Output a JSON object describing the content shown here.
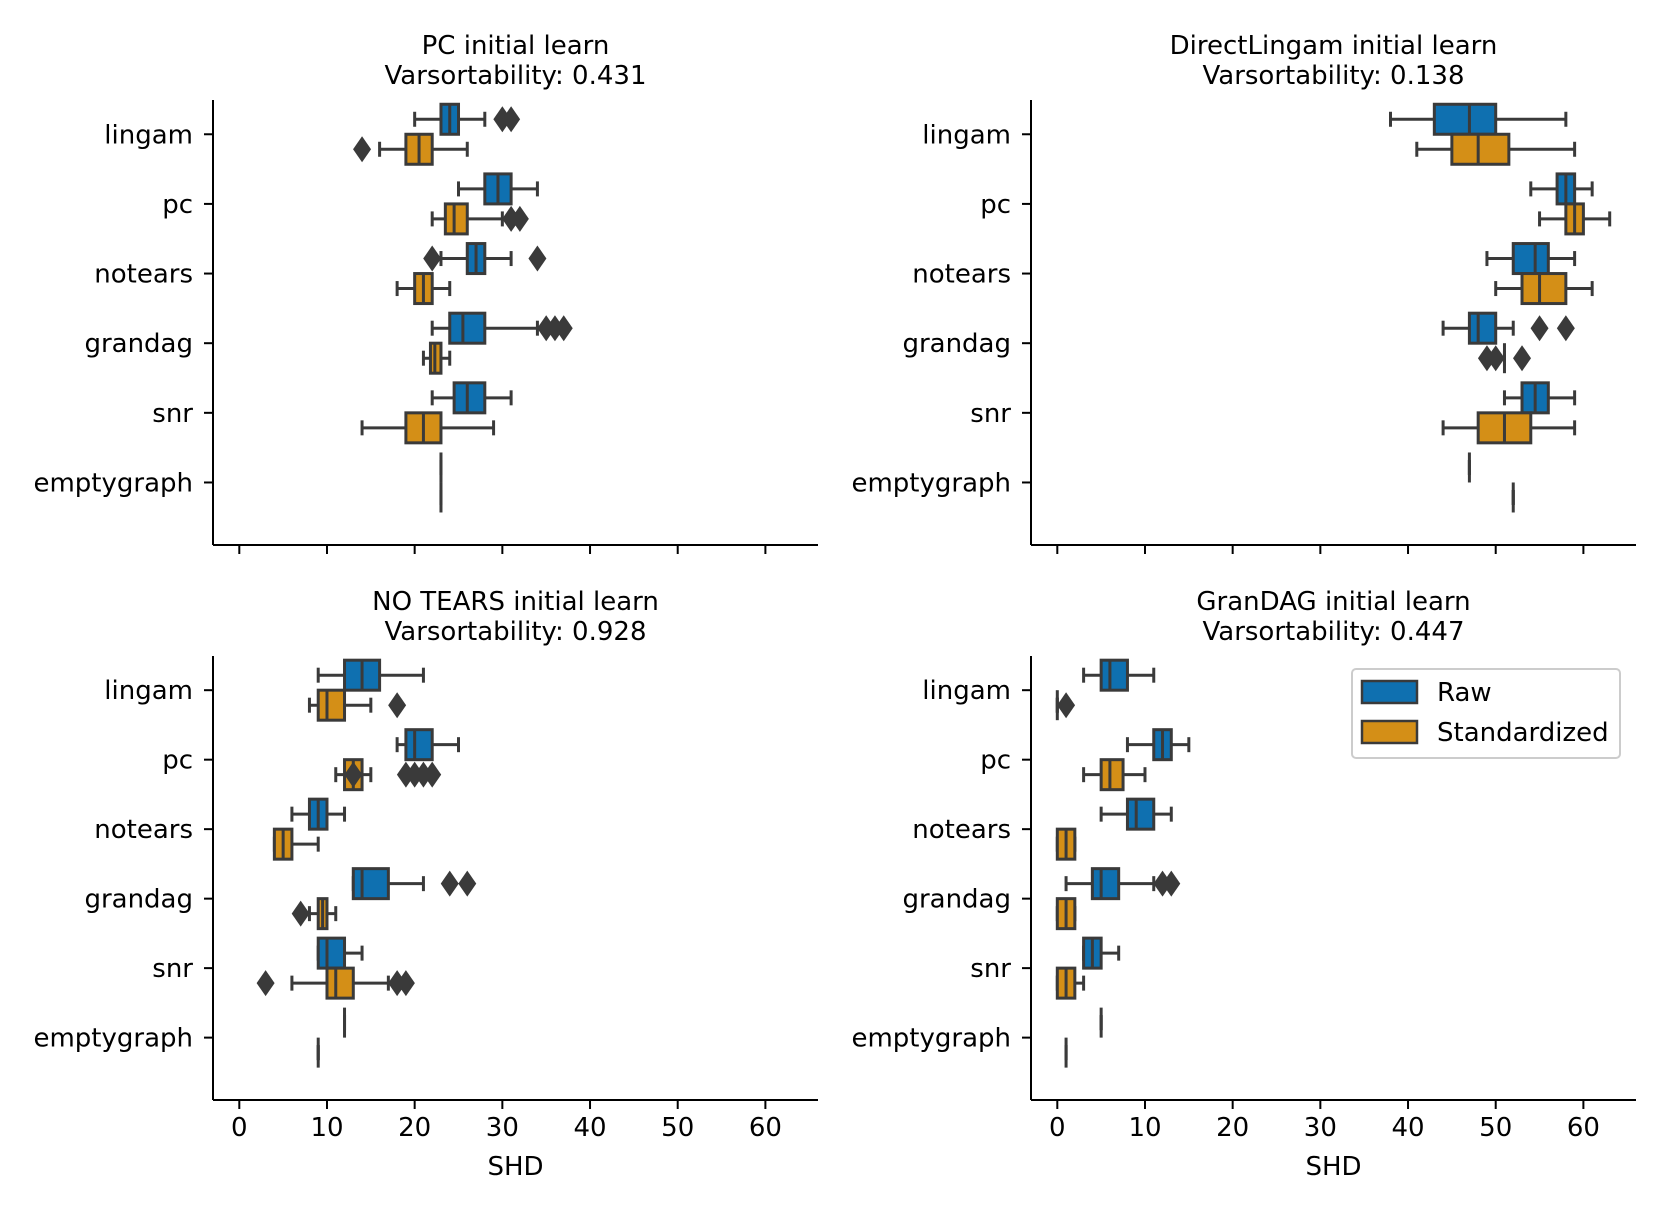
{
  "colors": {
    "raw": "#0f70b0",
    "standardized": "#d48f17",
    "edge": "#3a3a3a"
  },
  "legend": {
    "raw": "Raw",
    "standardized": "Standardized"
  },
  "shared": {
    "xlabel": "SHD",
    "xticks": [
      "0",
      "10",
      "20",
      "30",
      "40",
      "50",
      "60"
    ],
    "categories": [
      "lingam",
      "pc",
      "notears",
      "grandag",
      "snr",
      "emptygraph"
    ]
  },
  "chart_data": [
    {
      "type": "boxplot",
      "title": "PC initial learn",
      "subtitle": "Varsortability: 0.431",
      "xlabel": "SHD",
      "xlim": [
        -3,
        66
      ],
      "categories": [
        "lingam",
        "pc",
        "notears",
        "grandag",
        "snr",
        "emptygraph"
      ],
      "series": [
        {
          "name": "Raw",
          "boxes": [
            {
              "whislo": 20,
              "q1": 23,
              "med": 24,
              "q3": 25,
              "whishi": 28,
              "fliers": [
                30,
                31
              ]
            },
            {
              "whislo": 25,
              "q1": 28,
              "med": 29.5,
              "q3": 31,
              "whishi": 34,
              "fliers": []
            },
            {
              "whislo": 23,
              "q1": 26,
              "med": 27,
              "q3": 28,
              "whishi": 31,
              "fliers": [
                22,
                34
              ]
            },
            {
              "whislo": 22,
              "q1": 24,
              "med": 25.5,
              "q3": 28,
              "whishi": 34,
              "fliers": [
                35,
                36,
                37
              ]
            },
            {
              "whislo": 22,
              "q1": 24.5,
              "med": 26,
              "q3": 28,
              "whishi": 31,
              "fliers": []
            },
            {
              "whislo": 23,
              "q1": 23,
              "med": 23,
              "q3": 23,
              "whishi": 23,
              "fliers": []
            }
          ]
        },
        {
          "name": "Standardized",
          "boxes": [
            {
              "whislo": 16,
              "q1": 19,
              "med": 20.5,
              "q3": 22,
              "whishi": 26,
              "fliers": [
                14
              ]
            },
            {
              "whislo": 22,
              "q1": 23.5,
              "med": 24.5,
              "q3": 26,
              "whishi": 30,
              "fliers": [
                31,
                32
              ]
            },
            {
              "whislo": 18,
              "q1": 20,
              "med": 21,
              "q3": 22,
              "whishi": 24,
              "fliers": []
            },
            {
              "whislo": 21,
              "q1": 21.8,
              "med": 22.3,
              "q3": 23,
              "whishi": 24,
              "fliers": []
            },
            {
              "whislo": 14,
              "q1": 19,
              "med": 21,
              "q3": 23,
              "whishi": 29,
              "fliers": []
            },
            {
              "whislo": 23,
              "q1": 23,
              "med": 23,
              "q3": 23,
              "whishi": 23,
              "fliers": []
            }
          ]
        }
      ]
    },
    {
      "type": "boxplot",
      "title": "DirectLingam initial learn",
      "subtitle": "Varsortability: 0.138",
      "xlabel": "SHD",
      "xlim": [
        -3,
        66
      ],
      "categories": [
        "lingam",
        "pc",
        "notears",
        "grandag",
        "snr",
        "emptygraph"
      ],
      "series": [
        {
          "name": "Raw",
          "boxes": [
            {
              "whislo": 38,
              "q1": 43,
              "med": 47,
              "q3": 50,
              "whishi": 58,
              "fliers": []
            },
            {
              "whislo": 54,
              "q1": 57,
              "med": 58,
              "q3": 59,
              "whishi": 61,
              "fliers": []
            },
            {
              "whislo": 49,
              "q1": 52,
              "med": 54.5,
              "q3": 56,
              "whishi": 59,
              "fliers": []
            },
            {
              "whislo": 44,
              "q1": 47,
              "med": 48,
              "q3": 50,
              "whishi": 52,
              "fliers": [
                55,
                58
              ]
            },
            {
              "whislo": 51,
              "q1": 53,
              "med": 54.5,
              "q3": 56,
              "whishi": 59,
              "fliers": []
            },
            {
              "whislo": 47,
              "q1": 47,
              "med": 47,
              "q3": 47,
              "whishi": 47,
              "fliers": []
            }
          ]
        },
        {
          "name": "Standardized",
          "boxes": [
            {
              "whislo": 41,
              "q1": 45,
              "med": 48,
              "q3": 51.5,
              "whishi": 59,
              "fliers": []
            },
            {
              "whislo": 55,
              "q1": 58,
              "med": 59,
              "q3": 60,
              "whishi": 63,
              "fliers": []
            },
            {
              "whislo": 50,
              "q1": 53,
              "med": 55,
              "q3": 58,
              "whishi": 61,
              "fliers": []
            },
            {
              "whislo": 51,
              "q1": 51,
              "med": 51,
              "q3": 51,
              "whishi": 51,
              "fliers": [
                49,
                50,
                53
              ]
            },
            {
              "whislo": 44,
              "q1": 48,
              "med": 51,
              "q3": 54,
              "whishi": 59,
              "fliers": []
            },
            {
              "whislo": 52,
              "q1": 52,
              "med": 52,
              "q3": 52,
              "whishi": 52,
              "fliers": []
            }
          ]
        }
      ]
    },
    {
      "type": "boxplot",
      "title": "NO TEARS initial learn",
      "subtitle": "Varsortability: 0.928",
      "xlabel": "SHD",
      "xlim": [
        -3,
        66
      ],
      "categories": [
        "lingam",
        "pc",
        "notears",
        "grandag",
        "snr",
        "emptygraph"
      ],
      "series": [
        {
          "name": "Raw",
          "boxes": [
            {
              "whislo": 9,
              "q1": 12,
              "med": 14,
              "q3": 16,
              "whishi": 21,
              "fliers": []
            },
            {
              "whislo": 18,
              "q1": 19,
              "med": 20,
              "q3": 22,
              "whishi": 25,
              "fliers": []
            },
            {
              "whislo": 6,
              "q1": 8,
              "med": 9,
              "q3": 10,
              "whishi": 12,
              "fliers": []
            },
            {
              "whislo": 13,
              "q1": 13,
              "med": 14,
              "q3": 17,
              "whishi": 21,
              "fliers": [
                24,
                26
              ]
            },
            {
              "whislo": 9,
              "q1": 9,
              "med": 10,
              "q3": 12,
              "whishi": 14,
              "fliers": []
            },
            {
              "whislo": 12,
              "q1": 12,
              "med": 12,
              "q3": 12,
              "whishi": 12,
              "fliers": []
            }
          ]
        },
        {
          "name": "Standardized",
          "boxes": [
            {
              "whislo": 8,
              "q1": 9,
              "med": 10,
              "q3": 12,
              "whishi": 15,
              "fliers": [
                18
              ]
            },
            {
              "whislo": 11,
              "q1": 12,
              "med": 13,
              "q3": 14,
              "whishi": 15,
              "fliers": [
                13,
                19,
                20,
                21,
                22
              ]
            },
            {
              "whislo": 4,
              "q1": 4,
              "med": 5,
              "q3": 6,
              "whishi": 9,
              "fliers": []
            },
            {
              "whislo": 8,
              "q1": 9,
              "med": 9.5,
              "q3": 10,
              "whishi": 11,
              "fliers": [
                7
              ]
            },
            {
              "whislo": 6,
              "q1": 10,
              "med": 11,
              "q3": 13,
              "whishi": 17,
              "fliers": [
                3,
                18,
                19
              ]
            },
            {
              "whislo": 9,
              "q1": 9,
              "med": 9,
              "q3": 9,
              "whishi": 9,
              "fliers": []
            }
          ]
        }
      ]
    },
    {
      "type": "boxplot",
      "title": "GranDAG initial learn",
      "subtitle": "Varsortability: 0.447",
      "xlabel": "SHD",
      "xlim": [
        -3,
        66
      ],
      "legend": "top-right",
      "categories": [
        "lingam",
        "pc",
        "notears",
        "grandag",
        "snr",
        "emptygraph"
      ],
      "series": [
        {
          "name": "Raw",
          "boxes": [
            {
              "whislo": 3,
              "q1": 5,
              "med": 6,
              "q3": 8,
              "whishi": 11,
              "fliers": []
            },
            {
              "whislo": 8,
              "q1": 11,
              "med": 12,
              "q3": 13,
              "whishi": 15,
              "fliers": []
            },
            {
              "whislo": 5,
              "q1": 8,
              "med": 9,
              "q3": 11,
              "whishi": 13,
              "fliers": []
            },
            {
              "whislo": 1,
              "q1": 4,
              "med": 5,
              "q3": 7,
              "whishi": 11,
              "fliers": [
                12,
                13
              ]
            },
            {
              "whislo": 3,
              "q1": 3,
              "med": 4,
              "q3": 5,
              "whishi": 7,
              "fliers": []
            },
            {
              "whislo": 5,
              "q1": 5,
              "med": 5,
              "q3": 5,
              "whishi": 5,
              "fliers": []
            }
          ]
        },
        {
          "name": "Standardized",
          "boxes": [
            {
              "whislo": 0,
              "q1": 0,
              "med": 0,
              "q3": 0,
              "whishi": 0,
              "fliers": [
                1
              ]
            },
            {
              "whislo": 3,
              "q1": 5,
              "med": 6,
              "q3": 7.5,
              "whishi": 10,
              "fliers": []
            },
            {
              "whislo": 0,
              "q1": 0,
              "med": 1,
              "q3": 2,
              "whishi": 2,
              "fliers": []
            },
            {
              "whislo": 0,
              "q1": 0,
              "med": 1,
              "q3": 2,
              "whishi": 2,
              "fliers": []
            },
            {
              "whislo": 0,
              "q1": 0,
              "med": 1,
              "q3": 2,
              "whishi": 3,
              "fliers": []
            },
            {
              "whislo": 1,
              "q1": 1,
              "med": 1,
              "q3": 1,
              "whishi": 1,
              "fliers": []
            }
          ]
        }
      ]
    }
  ]
}
